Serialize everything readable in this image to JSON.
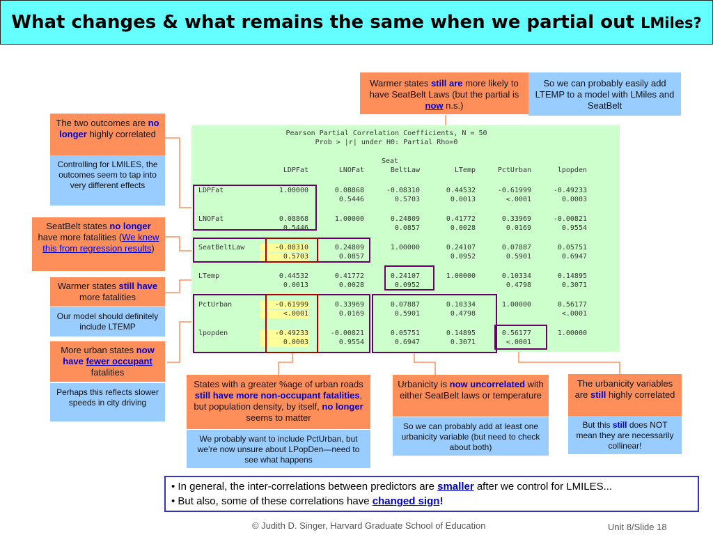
{
  "title": {
    "main": "What changes & what remains the same when we partial out",
    "small": "LMiles?"
  },
  "callouts": {
    "two_outcomes": {
      "pre": "The two outcomes are ",
      "em": "no longer",
      "post": " highly correlated"
    },
    "controlling": "Controlling for LMILES, the outcomes seem to tap into very different effects",
    "seatbelt": {
      "pre": "SeatBelt states ",
      "em": "no longer",
      "mid": " have more fatalities (",
      "link": "We knew this from regression results",
      "post": ")"
    },
    "warmer_fat": {
      "pre": "Warmer states ",
      "em": "still have",
      "post": " more fatalities"
    },
    "include_ltemp": "Our model should definitely include LTEMP",
    "urban": {
      "pre": "More urban states ",
      "em": "now have",
      "sp": " ",
      "em2": "fewer occupant",
      "post": " fatalities"
    },
    "slower": "Perhaps this reflects slower speeds in city driving",
    "warmer_laws": {
      "pre": "Warmer states ",
      "em": "still are",
      "mid": " more likely to have SeatBelt Laws (but the partial is ",
      "em2": "now",
      "post": " n.s.)"
    },
    "add_ltemp": "So we can probably easily add LTEMP to a model with LMiles and SeatBelt",
    "pcturban": {
      "pre": "States with a greater %age of urban roads ",
      "em": "still have more non-occupant fatalities",
      "mid": ", but population density, by itself, ",
      "em2": "no longer",
      "post": " seems to matter"
    },
    "include_pcturban": "We probably want to include PctUrban, but we’re now unsure about LPopDen—need to see what happens",
    "urbanicity": {
      "pre": "Urbanicity is ",
      "em": "now uncorrelated",
      "post": " with either SeatBelt laws or temperature"
    },
    "add_one": "So we can probably add at least one urbanicity variable (but need to check about both)",
    "urb_vars": {
      "pre": "The urbanicity variables are ",
      "em": "still",
      "post": " highly correlated"
    },
    "not_collinear": {
      "pre": "But this ",
      "em": "still",
      "post": " does NOT mean they are necessarily collinear!"
    }
  },
  "sas": {
    "title1": "Pearson Partial Correlation Coefficients, N = 50",
    "title2": "Prob > |r| under H0: Partial Rho=0",
    "header_top": "Seat",
    "columns": [
      "LDPFat",
      "LNOFat",
      "BeltLaw",
      "LTemp",
      "PctUrban",
      "lpopden"
    ],
    "rows": [
      {
        "name": "LDPFat",
        "r": [
          "1.00000",
          "0.08868",
          "-0.08310",
          "0.44532",
          "-0.61999",
          "-0.49233"
        ],
        "p": [
          "",
          "0.5446",
          "0.5703",
          "0.0013",
          "<.0001",
          "0.0003"
        ]
      },
      {
        "name": "LNOFat",
        "r": [
          "0.08868",
          "1.00000",
          "0.24809",
          "0.41772",
          "0.33969",
          "-0.00821"
        ],
        "p": [
          "0.5446",
          "",
          "0.0857",
          "0.0028",
          "0.0169",
          "0.9554"
        ]
      },
      {
        "name": "SeatBeltLaw",
        "r": [
          "-0.08310",
          "0.24809",
          "1.00000",
          "0.24107",
          "0.07887",
          "0.05751"
        ],
        "p": [
          "0.5703",
          "0.0857",
          "",
          "0.0952",
          "0.5901",
          "0.6947"
        ]
      },
      {
        "name": "LTemp",
        "r": [
          "0.44532",
          "0.41772",
          "0.24107",
          "1.00000",
          "0.10334",
          "0.14895"
        ],
        "p": [
          "0.0013",
          "0.0028",
          "0.0952",
          "",
          "0.4798",
          "0.3071"
        ]
      },
      {
        "name": "PctUrban",
        "r": [
          "-0.61999",
          "0.33969",
          "0.07887",
          "0.10334",
          "1.00000",
          "0.56177"
        ],
        "p": [
          "<.0001",
          "0.0169",
          "0.5901",
          "0.4798",
          "",
          "<.0001"
        ]
      },
      {
        "name": "lpopden",
        "r": [
          "-0.49233",
          "-0.00821",
          "0.05751",
          "0.14895",
          "0.56177",
          "1.00000"
        ],
        "p": [
          "0.0003",
          "0.9554",
          "0.6947",
          "0.3071",
          "<.0001",
          ""
        ]
      }
    ]
  },
  "bottom": {
    "line1": {
      "pre": "• In general, the inter-correlations between predictors are ",
      "em": "smaller",
      "post": " after we control for LMILES..."
    },
    "line2": {
      "pre": "• But also, some of these correlations have ",
      "em": "changed sign",
      "post": "!"
    }
  },
  "footer": {
    "copyright": "© Judith D. Singer, Harvard Graduate School of Education",
    "slide": "Unit 8/Slide 18"
  },
  "colors": {
    "title_bg": "#66ffff",
    "orange": "#ff8f5a",
    "blue": "#99ccff",
    "table_bg": "#ccffcc",
    "emphasis": "#0000cc",
    "frame_purple": "#660066",
    "frame_red": "#aa0000"
  }
}
